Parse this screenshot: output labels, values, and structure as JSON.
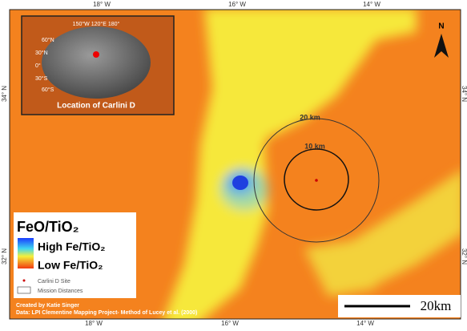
{
  "longitude_labels": {
    "top": [
      "18° W",
      "16° W",
      "14° W"
    ],
    "bottom": [
      "18° W",
      "16° W",
      "14° W"
    ]
  },
  "latitude_labels": {
    "left": [
      "34° N",
      "32° N"
    ],
    "right": [
      "34° N",
      "32° N"
    ]
  },
  "inset": {
    "caption": "Location of Carlini D",
    "graticule": [
      "150°W",
      "120°E",
      "180°",
      "60°N",
      "30°N",
      "0°",
      "30°S",
      "60°S"
    ]
  },
  "north_arrow": "N",
  "rings": [
    "20 km",
    "10 km"
  ],
  "legend": {
    "title": "FeO/TiO₂",
    "high": "High Fe/TiO₂",
    "low": "Low Fe/TiO₂",
    "site": "Carlini D Site",
    "distances": "Mission Distances"
  },
  "credits": [
    "Created by Katie Singer",
    "Data: LPI Clementine Mapping Project- Method of Lucey et al. (2000)"
  ],
  "scale_bar": "20km"
}
